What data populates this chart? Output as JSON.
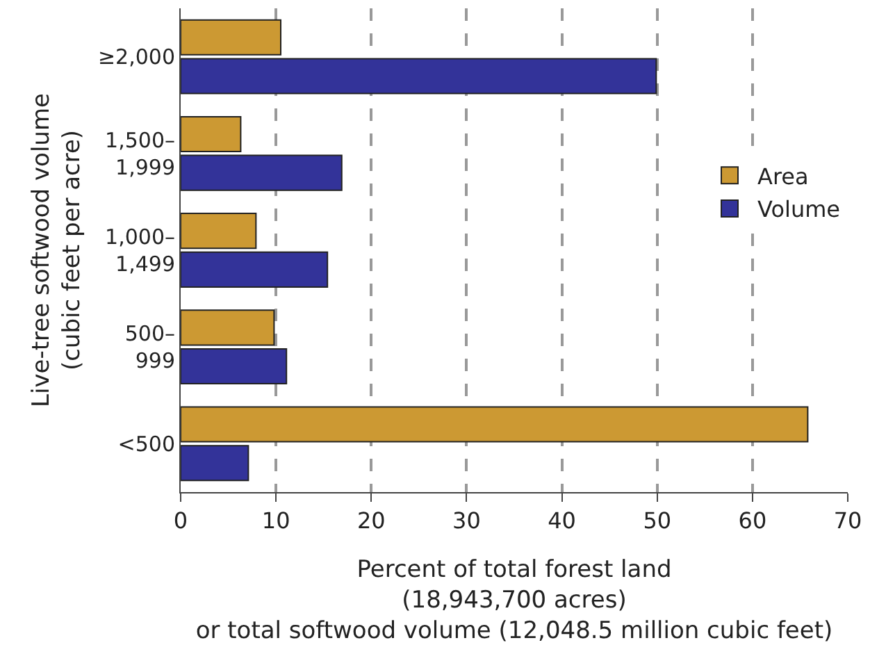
{
  "chart_data": {
    "type": "bar",
    "orientation": "horizontal",
    "xlabel": "Percent of total forest land (18,943,700 acres) or total softwood volume (12,048.5 million cubic feet)",
    "ylabel": "Live-tree softwood volume (cubic feet per acre)",
    "categories": [
      "≥2,000",
      "1,500–1,999",
      "1,000–1,499",
      "500–999",
      "<500"
    ],
    "series": [
      {
        "name": "Area",
        "color": "#cc9933",
        "values": [
          10.5,
          6.3,
          7.9,
          9.8,
          65.8
        ]
      },
      {
        "name": "Volume",
        "color": "#333399",
        "values": [
          49.9,
          16.9,
          15.4,
          11.1,
          7.1
        ]
      }
    ],
    "xlim": [
      0,
      70
    ],
    "xticks": [
      0,
      10,
      20,
      30,
      40,
      50,
      60,
      70
    ],
    "grid": "x",
    "legend": "right"
  }
}
